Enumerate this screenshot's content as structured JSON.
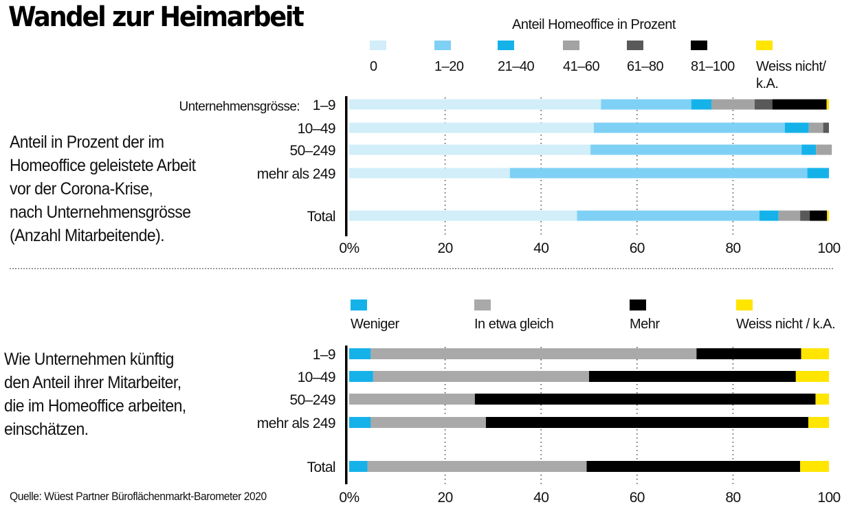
{
  "title": "Wandel zur Heimarbeit",
  "source": "Quelle: Wüest Partner Büroflächenmarkt-Barometer 2020",
  "colors": {
    "c0": "#d1eef9",
    "c1_20": "#7fd0f5",
    "c21_40": "#15b2ea",
    "c41_60": "#a3a3a3",
    "c61_80": "#595959",
    "c81_100": "#000000",
    "wn": "#ffe500",
    "weniger": "#15b2ea",
    "gleich": "#a9a9a9",
    "mehr": "#000000"
  },
  "chart_data": [
    {
      "type": "bar",
      "orientation": "horizontal",
      "stacked": true,
      "title": "Anteil Homeoffice in Prozent",
      "description": [
        "Anteil in Prozent der im",
        "Homeoffice geleistete Arbeit",
        "vor der Corona-Krise,",
        "nach Unternehmensgrösse",
        "(Anzahl Mitarbeitende)."
      ],
      "category_prefix": "Unternehmensgrösse:",
      "categories": [
        "1–9",
        "10–49",
        "50–249",
        "mehr als 249",
        "Total"
      ],
      "xlim": [
        0,
        100
      ],
      "ticks": [
        0,
        20,
        40,
        60,
        80,
        100
      ],
      "tick_labels": [
        "0%",
        "20",
        "40",
        "60",
        "80",
        "100"
      ],
      "grid": true,
      "legend": "top",
      "series": [
        {
          "name": "0",
          "color": "#d1eef9",
          "values": [
            52.5,
            51,
            50.3,
            33.5,
            47.5
          ]
        },
        {
          "name": "1–20",
          "color": "#7fd0f5",
          "values": [
            18.8,
            39.8,
            44,
            62,
            38
          ]
        },
        {
          "name": "21–40",
          "color": "#15b2ea",
          "values": [
            4.2,
            5,
            3,
            4.5,
            4
          ]
        },
        {
          "name": "41–60",
          "color": "#a3a3a3",
          "values": [
            9,
            3,
            3.3,
            0,
            4.5
          ]
        },
        {
          "name": "61–80",
          "color": "#595959",
          "values": [
            3.7,
            1.2,
            0,
            0,
            2
          ]
        },
        {
          "name": "81–100",
          "color": "#000000",
          "values": [
            11.3,
            0,
            0,
            0,
            3.6
          ]
        },
        {
          "name": "Weiss nicht/ k.A.",
          "color": "#ffe500",
          "values": [
            0.5,
            0,
            0,
            0,
            0.4
          ]
        }
      ]
    },
    {
      "type": "bar",
      "orientation": "horizontal",
      "stacked": true,
      "description": [
        "Wie Unternehmen künftig",
        "den Anteil ihrer Mitarbeiter,",
        "die im Homeoffice arbeiten,",
        "einschätzen."
      ],
      "categories": [
        "1–9",
        "10–49",
        "50–249",
        "mehr als 249",
        "Total"
      ],
      "xlim": [
        0,
        100
      ],
      "ticks": [
        0,
        20,
        40,
        60,
        80,
        100
      ],
      "tick_labels": [
        "0%",
        "20",
        "40",
        "60",
        "80",
        "100"
      ],
      "grid": true,
      "legend": "top",
      "series": [
        {
          "name": "Weniger",
          "color": "#15b2ea",
          "values": [
            4.5,
            5,
            0,
            4.5,
            3.8
          ]
        },
        {
          "name": "In etwa gleich",
          "color": "#a9a9a9",
          "values": [
            67.9,
            45,
            26.2,
            24,
            45.7
          ]
        },
        {
          "name": "Mehr",
          "color": "#000000",
          "values": [
            21.8,
            43.1,
            71,
            67.2,
            44.5
          ]
        },
        {
          "name": "Weiss nicht / k.A.",
          "color": "#ffe500",
          "values": [
            5.8,
            6.9,
            2.8,
            4.3,
            6
          ]
        }
      ]
    }
  ]
}
